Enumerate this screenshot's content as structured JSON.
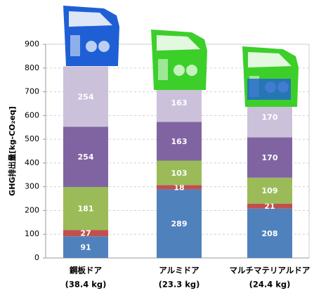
{
  "chart_data": {
    "type": "bar",
    "stacked": true,
    "y_label": "GHG排出量[kg-CO₂eq]",
    "categories": [
      "鋼板ドア",
      "アルミドア",
      "マルチマテリアルドア"
    ],
    "category_notes": [
      "(38.4 kg)",
      "(23.3 kg)",
      "(24.4 kg)"
    ],
    "series": [
      {
        "color": "#4f81bd",
        "values": [
          91,
          289,
          208
        ]
      },
      {
        "color": "#c0504d",
        "values": [
          27,
          18,
          21
        ]
      },
      {
        "color": "#9bbb59",
        "values": [
          181,
          103,
          109
        ]
      },
      {
        "color": "#8064a2",
        "values": [
          254,
          163,
          170
        ]
      },
      {
        "color": "#ccc1da",
        "values": [
          254,
          163,
          170
        ]
      }
    ],
    "ylim": [
      0,
      900
    ],
    "yticks": [
      0,
      100,
      200,
      300,
      400,
      500,
      600,
      700,
      800,
      900
    ],
    "grid": true
  }
}
